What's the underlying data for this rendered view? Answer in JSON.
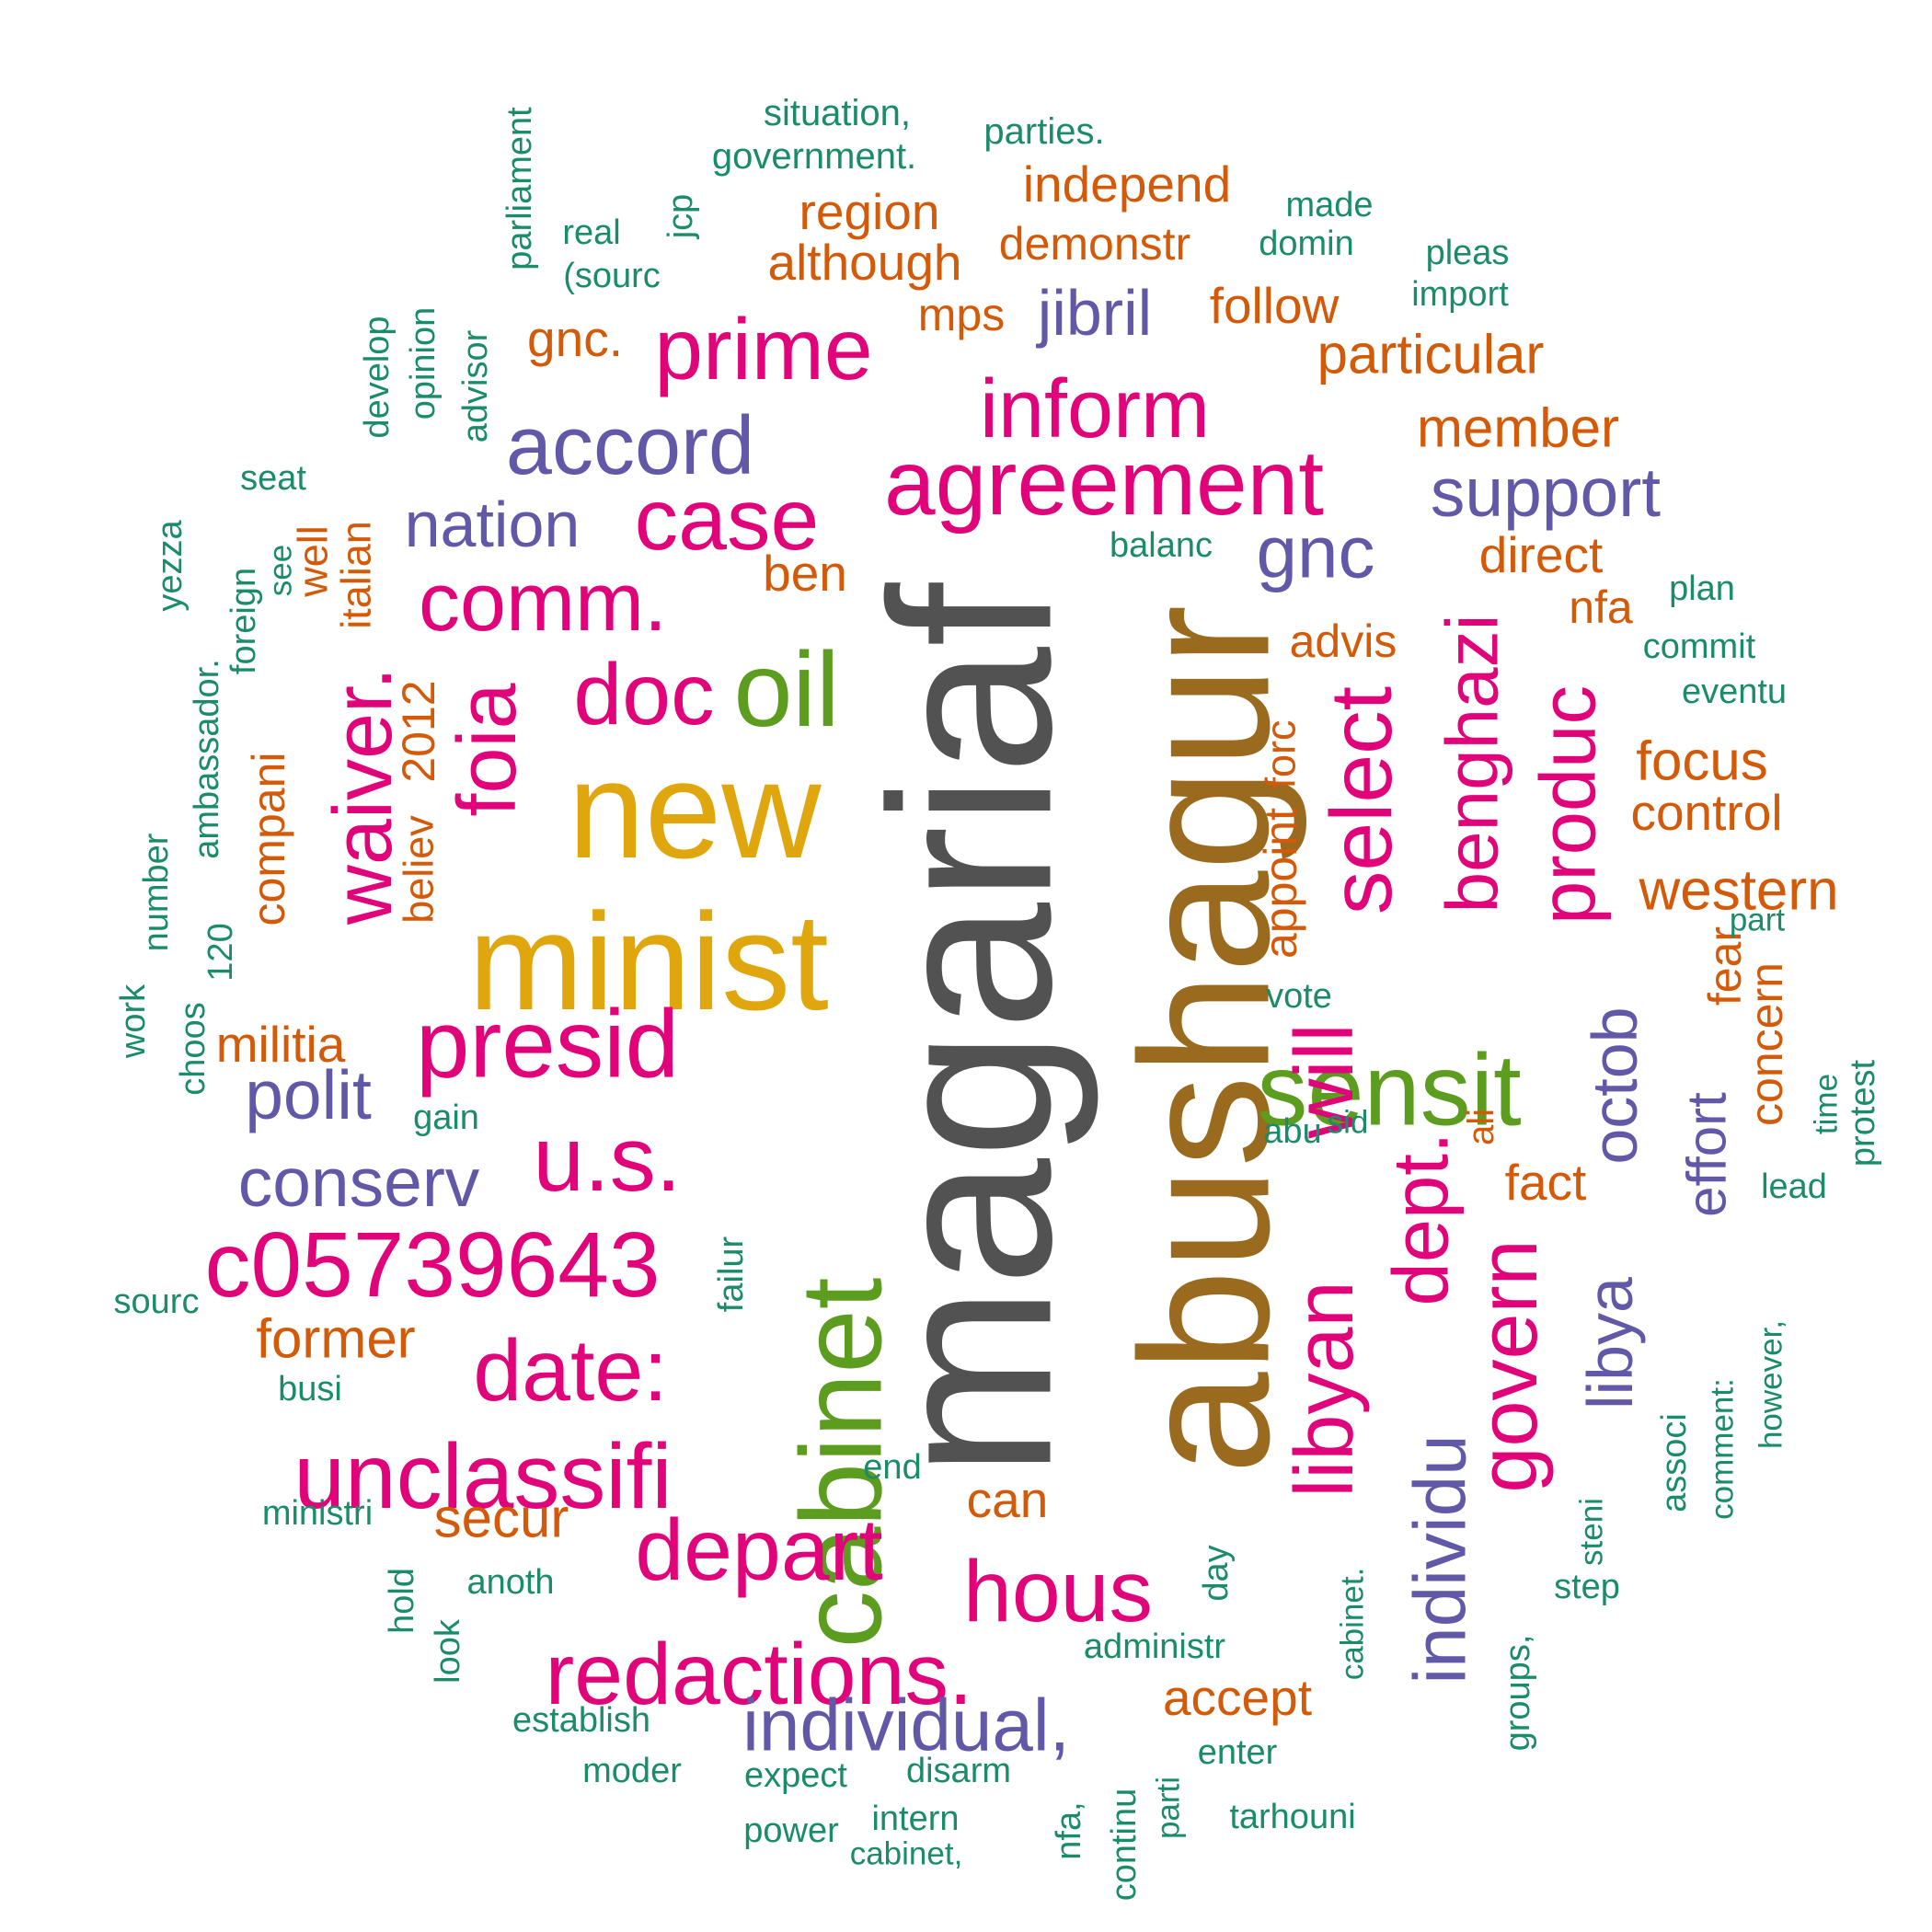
{
  "colors": {
    "dark": "#525252",
    "brown": "#9a6a1f",
    "gold": "#e0a60e",
    "green": "#5c9c1e",
    "magenta": "#e0037a",
    "purple": "#6159a8",
    "orange": "#d35a08",
    "teal": "#1b8c68"
  },
  "words": [
    {
      "text": "magariaf",
      "color": "dark"
    },
    {
      "text": "abushagur",
      "color": "brown"
    },
    {
      "text": "new",
      "color": "gold"
    },
    {
      "text": "minist",
      "color": "gold"
    },
    {
      "text": "cabinet",
      "color": "green"
    },
    {
      "text": "oil",
      "color": "green"
    },
    {
      "text": "sensit",
      "color": "green"
    },
    {
      "text": "prime",
      "color": "magenta"
    },
    {
      "text": "inform",
      "color": "magenta"
    },
    {
      "text": "agreement",
      "color": "magenta"
    },
    {
      "text": "case",
      "color": "magenta"
    },
    {
      "text": "comm.",
      "color": "magenta"
    },
    {
      "text": "doc",
      "color": "magenta"
    },
    {
      "text": "presid",
      "color": "magenta"
    },
    {
      "text": "u.s.",
      "color": "magenta"
    },
    {
      "text": "c05739643",
      "color": "magenta"
    },
    {
      "text": "date:",
      "color": "magenta"
    },
    {
      "text": "unclassifi",
      "color": "magenta"
    },
    {
      "text": "depart",
      "color": "magenta"
    },
    {
      "text": "hous",
      "color": "magenta"
    },
    {
      "text": "redactions.",
      "color": "magenta"
    },
    {
      "text": "waiver.",
      "color": "magenta"
    },
    {
      "text": "foia",
      "color": "magenta"
    },
    {
      "text": "select",
      "color": "magenta"
    },
    {
      "text": "benghazi",
      "color": "magenta"
    },
    {
      "text": "produc",
      "color": "magenta"
    },
    {
      "text": "libyan",
      "color": "magenta"
    },
    {
      "text": "will",
      "color": "magenta"
    },
    {
      "text": "dept.",
      "color": "magenta"
    },
    {
      "text": "govern",
      "color": "magenta"
    },
    {
      "text": "accord",
      "color": "purple"
    },
    {
      "text": "nation",
      "color": "purple"
    },
    {
      "text": "jibril",
      "color": "purple"
    },
    {
      "text": "support",
      "color": "purple"
    },
    {
      "text": "gnc",
      "color": "purple"
    },
    {
      "text": "polit",
      "color": "purple"
    },
    {
      "text": "conserv",
      "color": "purple"
    },
    {
      "text": "individual,",
      "color": "purple"
    },
    {
      "text": "individu",
      "color": "purple"
    },
    {
      "text": "libya",
      "color": "purple"
    },
    {
      "text": "octob",
      "color": "purple"
    },
    {
      "text": "effort",
      "color": "purple"
    },
    {
      "text": "region",
      "color": "orange"
    },
    {
      "text": "independ",
      "color": "orange"
    },
    {
      "text": "demonstr",
      "color": "orange"
    },
    {
      "text": "although",
      "color": "orange"
    },
    {
      "text": "mps",
      "color": "orange"
    },
    {
      "text": "follow",
      "color": "orange"
    },
    {
      "text": "gnc.",
      "color": "orange"
    },
    {
      "text": "particular",
      "color": "orange"
    },
    {
      "text": "member",
      "color": "orange"
    },
    {
      "text": "direct",
      "color": "orange"
    },
    {
      "text": "ben",
      "color": "orange"
    },
    {
      "text": "nfa",
      "color": "orange"
    },
    {
      "text": "advis",
      "color": "orange"
    },
    {
      "text": "focus",
      "color": "orange"
    },
    {
      "text": "control",
      "color": "orange"
    },
    {
      "text": "western",
      "color": "orange"
    },
    {
      "text": "militia",
      "color": "orange"
    },
    {
      "text": "former",
      "color": "orange"
    },
    {
      "text": "secur",
      "color": "orange"
    },
    {
      "text": "can",
      "color": "orange"
    },
    {
      "text": "fact",
      "color": "orange"
    },
    {
      "text": "accept",
      "color": "orange"
    },
    {
      "text": "fear",
      "color": "orange"
    },
    {
      "text": "concern",
      "color": "orange"
    },
    {
      "text": "well",
      "color": "orange"
    },
    {
      "text": "italian",
      "color": "orange"
    },
    {
      "text": "2012",
      "color": "orange"
    },
    {
      "text": "believ",
      "color": "orange"
    },
    {
      "text": "compani",
      "color": "orange"
    },
    {
      "text": "forc",
      "color": "orange"
    },
    {
      "text": "appoint",
      "color": "orange"
    },
    {
      "text": "ali",
      "color": "orange"
    },
    {
      "text": "situation,",
      "color": "teal"
    },
    {
      "text": "government.",
      "color": "teal"
    },
    {
      "text": "parties.",
      "color": "teal"
    },
    {
      "text": "made",
      "color": "teal"
    },
    {
      "text": "domin",
      "color": "teal"
    },
    {
      "text": "pleas",
      "color": "teal"
    },
    {
      "text": "import",
      "color": "teal"
    },
    {
      "text": "real",
      "color": "teal"
    },
    {
      "text": "(sourc",
      "color": "teal"
    },
    {
      "text": "jcp",
      "color": "teal"
    },
    {
      "text": "parliament",
      "color": "teal"
    },
    {
      "text": "seat",
      "color": "teal"
    },
    {
      "text": "develop",
      "color": "teal"
    },
    {
      "text": "opinion",
      "color": "teal"
    },
    {
      "text": "advisor",
      "color": "teal"
    },
    {
      "text": "balanc",
      "color": "teal"
    },
    {
      "text": "plan",
      "color": "teal"
    },
    {
      "text": "commit",
      "color": "teal"
    },
    {
      "text": "eventu",
      "color": "teal"
    },
    {
      "text": "part",
      "color": "teal"
    },
    {
      "text": "vote",
      "color": "teal"
    },
    {
      "text": "gain",
      "color": "teal"
    },
    {
      "text": "abu",
      "color": "teal"
    },
    {
      "text": "sid",
      "color": "teal"
    },
    {
      "text": "lead",
      "color": "teal"
    },
    {
      "text": "sourc",
      "color": "teal"
    },
    {
      "text": "busi",
      "color": "teal"
    },
    {
      "text": "end",
      "color": "teal"
    },
    {
      "text": "ministri",
      "color": "teal"
    },
    {
      "text": "anoth",
      "color": "teal"
    },
    {
      "text": "step",
      "color": "teal"
    },
    {
      "text": "administr",
      "color": "teal"
    },
    {
      "text": "establish",
      "color": "teal"
    },
    {
      "text": "moder",
      "color": "teal"
    },
    {
      "text": "expect",
      "color": "teal"
    },
    {
      "text": "disarm",
      "color": "teal"
    },
    {
      "text": "enter",
      "color": "teal"
    },
    {
      "text": "power",
      "color": "teal"
    },
    {
      "text": "intern",
      "color": "teal"
    },
    {
      "text": "cabinet,",
      "color": "teal"
    },
    {
      "text": "tarhouni",
      "color": "teal"
    },
    {
      "text": "yezza",
      "color": "teal"
    },
    {
      "text": "foreign",
      "color": "teal"
    },
    {
      "text": "see",
      "color": "teal"
    },
    {
      "text": "ambassador.",
      "color": "teal"
    },
    {
      "text": "120",
      "color": "teal"
    },
    {
      "text": "number",
      "color": "teal"
    },
    {
      "text": "work",
      "color": "teal"
    },
    {
      "text": "choos",
      "color": "teal"
    },
    {
      "text": "failur",
      "color": "teal"
    },
    {
      "text": "hold",
      "color": "teal"
    },
    {
      "text": "look",
      "color": "teal"
    },
    {
      "text": "day",
      "color": "teal"
    },
    {
      "text": "cabinet.",
      "color": "teal"
    },
    {
      "text": "nfa,",
      "color": "teal"
    },
    {
      "text": "continu",
      "color": "teal"
    },
    {
      "text": "parti",
      "color": "teal"
    },
    {
      "text": "groups,",
      "color": "teal"
    },
    {
      "text": "steni",
      "color": "teal"
    },
    {
      "text": "associ",
      "color": "teal"
    },
    {
      "text": "comment:",
      "color": "teal"
    },
    {
      "text": "however,",
      "color": "teal"
    },
    {
      "text": "time",
      "color": "teal"
    },
    {
      "text": "protest",
      "color": "teal"
    }
  ]
}
